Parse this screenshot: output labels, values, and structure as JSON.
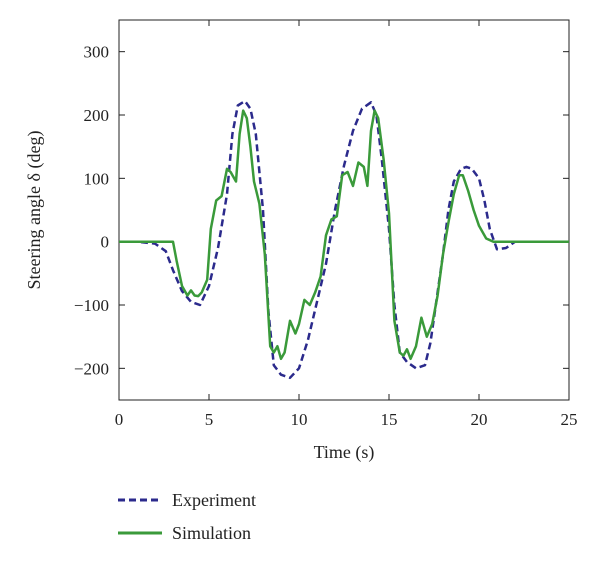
{
  "chart_data": {
    "type": "line",
    "xlabel": "Time (s)",
    "ylabel": "Steering angle δ (deg)",
    "xlim": [
      0,
      25
    ],
    "ylim": [
      -250,
      350
    ],
    "xticks": [
      0,
      5,
      10,
      15,
      20,
      25
    ],
    "yticks": [
      -200,
      -100,
      0,
      100,
      200,
      300
    ],
    "xtick_labels": [
      "0",
      "5",
      "10",
      "15",
      "20",
      "25"
    ],
    "ytick_labels": [
      "−200",
      "−100",
      "0",
      "100",
      "200",
      "300"
    ],
    "grid": false,
    "legend_position": "below",
    "series": [
      {
        "name": "Experiment",
        "style": "dashed",
        "color": "#2b2a8c",
        "x": [
          0,
          1,
          2,
          2.6,
          3.0,
          3.5,
          4.0,
          4.5,
          5.0,
          5.5,
          6.0,
          6.3,
          6.6,
          7.0,
          7.3,
          7.6,
          8.0,
          8.3,
          8.6,
          9.0,
          9.5,
          10.0,
          10.5,
          11.0,
          11.5,
          12.0,
          12.5,
          13.0,
          13.5,
          14.0,
          14.3,
          14.6,
          15.0,
          15.3,
          15.6,
          16.0,
          16.5,
          17.0,
          17.3,
          17.6,
          18.0,
          18.3,
          18.6,
          19.0,
          19.3,
          19.6,
          20.0,
          20.3,
          20.6,
          21.0,
          21.5,
          22.0,
          23.0,
          24.0,
          25.0
        ],
        "y": [
          0,
          0,
          -3,
          -15,
          -45,
          -78,
          -95,
          -100,
          -70,
          -10,
          75,
          170,
          215,
          222,
          210,
          170,
          50,
          -110,
          -195,
          -210,
          -215,
          -200,
          -155,
          -95,
          -35,
          50,
          120,
          175,
          210,
          220,
          200,
          130,
          20,
          -100,
          -175,
          -190,
          -200,
          -195,
          -160,
          -100,
          -20,
          50,
          95,
          115,
          118,
          115,
          100,
          65,
          20,
          -12,
          -10,
          0,
          0,
          0,
          0
        ]
      },
      {
        "name": "Simulation",
        "style": "solid",
        "color": "#3a9a3a",
        "x": [
          0,
          1,
          2,
          3.0,
          3.2,
          3.5,
          3.8,
          4.0,
          4.2,
          4.4,
          4.6,
          4.9,
          5.1,
          5.4,
          5.7,
          6.0,
          6.2,
          6.5,
          6.7,
          6.9,
          7.1,
          7.3,
          7.5,
          7.8,
          8.1,
          8.4,
          8.6,
          8.8,
          9.0,
          9.2,
          9.5,
          9.8,
          10.0,
          10.3,
          10.6,
          10.9,
          11.2,
          11.5,
          11.8,
          12.1,
          12.4,
          12.7,
          13.0,
          13.3,
          13.6,
          13.8,
          14.0,
          14.2,
          14.4,
          14.7,
          15.0,
          15.3,
          15.6,
          15.8,
          16.0,
          16.2,
          16.5,
          16.8,
          17.1,
          17.4,
          17.7,
          18.0,
          18.3,
          18.6,
          18.9,
          19.1,
          19.4,
          19.7,
          20.0,
          20.4,
          20.8,
          21.2,
          22.0,
          23.0,
          24.0,
          25.0
        ],
        "y": [
          0,
          0,
          0,
          0,
          -30,
          -70,
          -85,
          -77,
          -85,
          -86,
          -80,
          -60,
          20,
          65,
          72,
          115,
          110,
          95,
          170,
          207,
          195,
          150,
          95,
          60,
          -20,
          -165,
          -175,
          -165,
          -185,
          -175,
          -125,
          -145,
          -130,
          -92,
          -100,
          -80,
          -55,
          10,
          35,
          40,
          105,
          110,
          88,
          125,
          118,
          88,
          175,
          207,
          195,
          130,
          45,
          -125,
          -175,
          -180,
          -170,
          -185,
          -165,
          -120,
          -150,
          -130,
          -85,
          -20,
          30,
          75,
          105,
          105,
          80,
          50,
          25,
          5,
          0,
          0,
          0,
          0,
          0,
          0
        ]
      }
    ]
  }
}
